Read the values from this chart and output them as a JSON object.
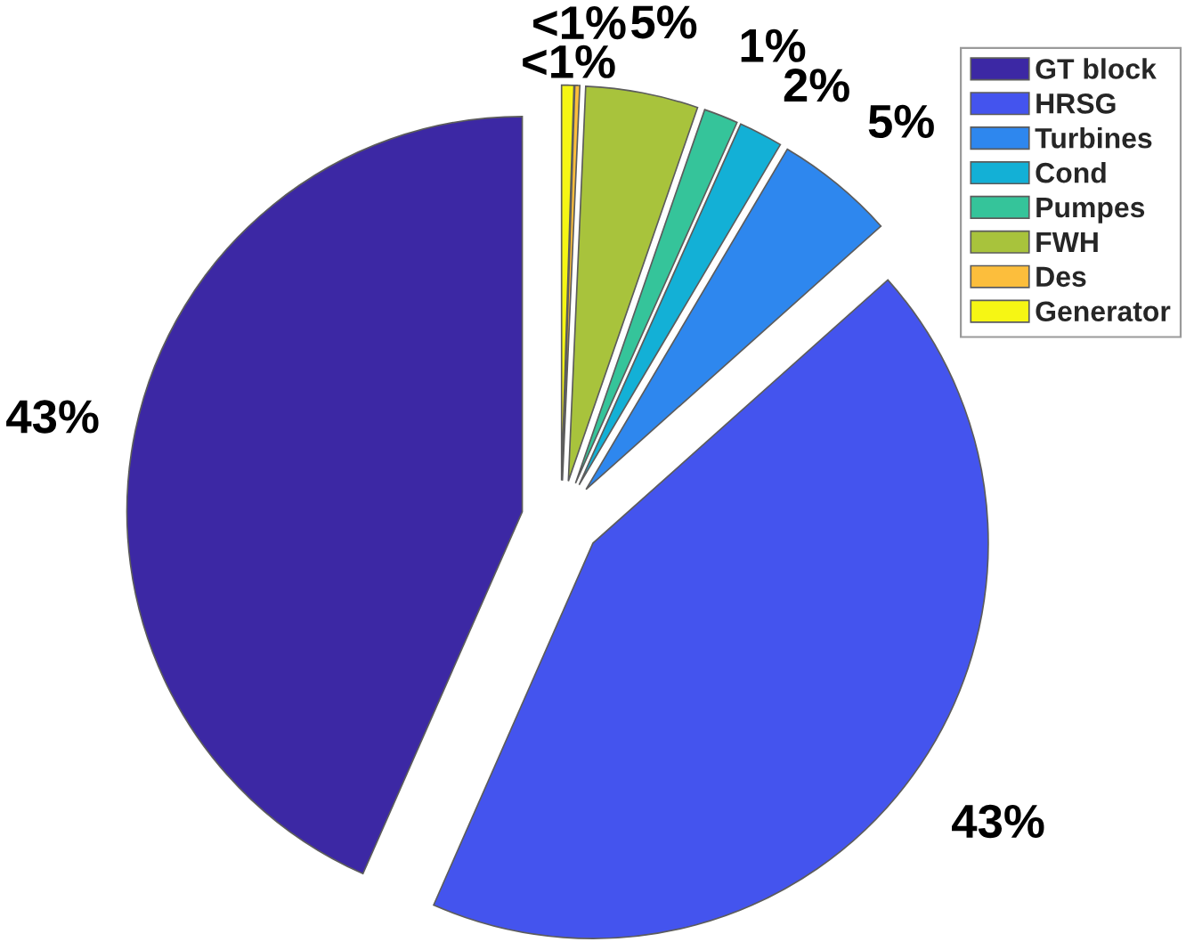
{
  "chart_data": {
    "type": "pie",
    "categories": [
      "GT block",
      "HRSG",
      "Turbines",
      "Cond",
      "Pumpes",
      "FWH",
      "Des",
      "Generator"
    ],
    "values": [
      43.4,
      43.2,
      4.9,
      1.8,
      1.4,
      4.6,
      0.2,
      0.5
    ],
    "colors": [
      "#3c28a4",
      "#4454ee",
      "#2e87ee",
      "#13b0d6",
      "#35c49a",
      "#a8c33c",
      "#fcbe3c",
      "#f6f614"
    ],
    "value_labels": [
      "43%",
      "43%",
      "5%",
      "2%",
      "1%",
      "5%",
      "<1%",
      "<1%"
    ],
    "legend": "top right"
  }
}
